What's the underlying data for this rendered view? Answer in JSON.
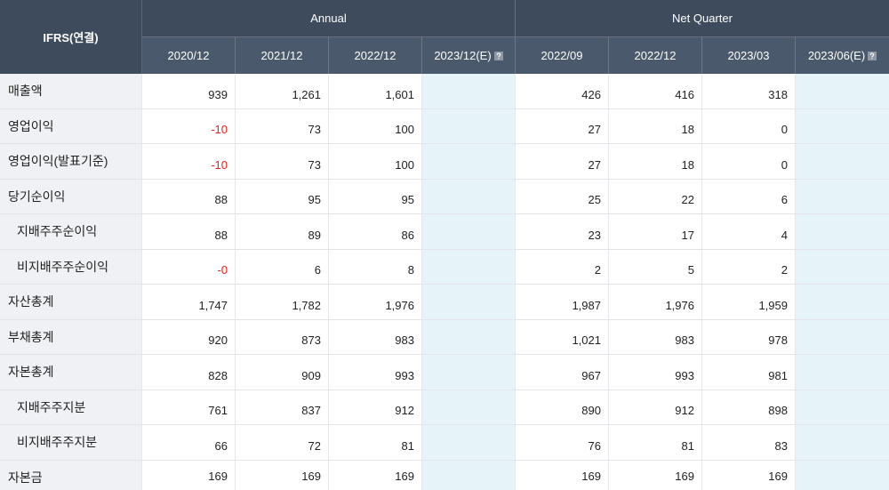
{
  "header": {
    "title": "IFRS(연결)",
    "groups": [
      {
        "label": "Annual",
        "columns": [
          {
            "label": "2020/12",
            "estimate": false
          },
          {
            "label": "2021/12",
            "estimate": false
          },
          {
            "label": "2022/12",
            "estimate": false
          },
          {
            "label": "2023/12(E)",
            "estimate": true
          }
        ]
      },
      {
        "label": "Net Quarter",
        "columns": [
          {
            "label": "2022/09",
            "estimate": false
          },
          {
            "label": "2022/12",
            "estimate": false
          },
          {
            "label": "2023/03",
            "estimate": false
          },
          {
            "label": "2023/06(E)",
            "estimate": true
          }
        ]
      }
    ],
    "estimate_icon": "help-icon"
  },
  "rows": [
    {
      "label": "매출액",
      "level": 1,
      "values": [
        "939",
        "1,261",
        "1,601",
        "",
        "426",
        "416",
        "318",
        ""
      ]
    },
    {
      "label": "영업이익",
      "level": 1,
      "values": [
        "-10",
        "73",
        "100",
        "",
        "27",
        "18",
        "0",
        ""
      ]
    },
    {
      "label": "영업이익(발표기준)",
      "level": 1,
      "values": [
        "-10",
        "73",
        "100",
        "",
        "27",
        "18",
        "0",
        ""
      ]
    },
    {
      "label": "당기순이익",
      "level": 1,
      "values": [
        "88",
        "95",
        "95",
        "",
        "25",
        "22",
        "6",
        ""
      ]
    },
    {
      "label": "지배주주순이익",
      "level": 2,
      "values": [
        "88",
        "89",
        "86",
        "",
        "23",
        "17",
        "4",
        ""
      ]
    },
    {
      "label": "비지배주주순이익",
      "level": 2,
      "values": [
        "-0",
        "6",
        "8",
        "",
        "2",
        "5",
        "2",
        ""
      ]
    },
    {
      "label": "자산총계",
      "level": 1,
      "values": [
        "1,747",
        "1,782",
        "1,976",
        "",
        "1,987",
        "1,976",
        "1,959",
        ""
      ]
    },
    {
      "label": "부채총계",
      "level": 1,
      "values": [
        "920",
        "873",
        "983",
        "",
        "1,021",
        "983",
        "978",
        ""
      ]
    },
    {
      "label": "자본총계",
      "level": 1,
      "values": [
        "828",
        "909",
        "993",
        "",
        "967",
        "993",
        "981",
        ""
      ]
    },
    {
      "label": "지배주주지분",
      "level": 2,
      "values": [
        "761",
        "837",
        "912",
        "",
        "890",
        "912",
        "898",
        ""
      ]
    },
    {
      "label": "비지배주주지분",
      "level": 2,
      "values": [
        "66",
        "72",
        "81",
        "",
        "76",
        "81",
        "83",
        ""
      ]
    },
    {
      "label": "자본금",
      "level": 1,
      "values": [
        "169",
        "169",
        "169",
        "",
        "169",
        "169",
        "169",
        ""
      ]
    }
  ],
  "colors": {
    "header_bg": "#3e4b5d",
    "subheader_bg": "#4a596c",
    "label_bg": "#eff1f4",
    "estimate_bg": "#e6f3f8",
    "negative": "#e4221c"
  }
}
